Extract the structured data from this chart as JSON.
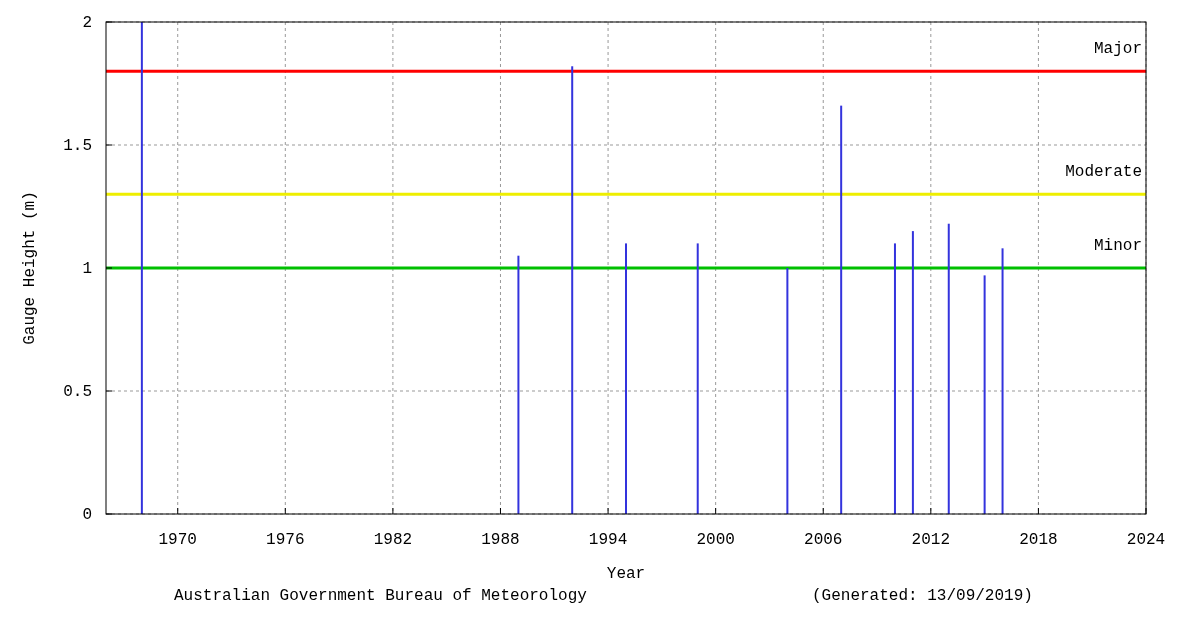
{
  "chart_data": {
    "type": "bar",
    "xlabel": "Year",
    "ylabel": "Gauge Height (m)",
    "x": [
      1968,
      1989,
      1992,
      1995,
      1999,
      2004,
      2007,
      2010,
      2011,
      2013,
      2015,
      2016
    ],
    "values": [
      2,
      1.05,
      1.82,
      1.1,
      1.1,
      1.0,
      1.66,
      1.1,
      1.15,
      1.18,
      0.97,
      1.08
    ],
    "color": "#3333dd",
    "xlim": [
      1966,
      2024
    ],
    "xticks": [
      1970,
      1976,
      1982,
      1988,
      1994,
      2000,
      2006,
      2012,
      2018,
      2024
    ],
    "ylim": [
      0,
      2
    ],
    "yticks": [
      0,
      0.5,
      1,
      1.5,
      2
    ],
    "grid": true,
    "ref_lines": [
      {
        "axis": "y",
        "value": 1.8,
        "label": "Major",
        "color": "#ff0000"
      },
      {
        "axis": "y",
        "value": 1.3,
        "label": "Moderate",
        "color": "#eeee00"
      },
      {
        "axis": "y",
        "value": 1.0,
        "label": "Minor",
        "color": "#00c000"
      }
    ],
    "annotations": [
      "Australian Government Bureau of Meteorology",
      "(Generated: 13/09/2019)"
    ]
  }
}
